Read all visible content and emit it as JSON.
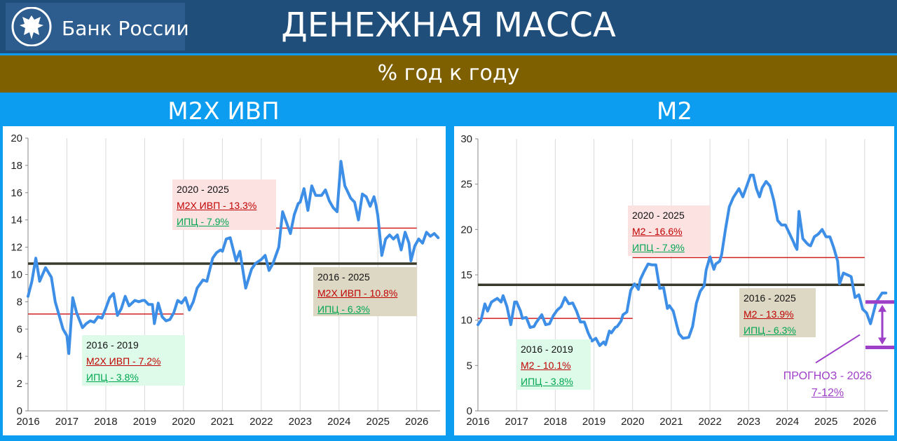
{
  "header": {
    "logo_text": "Банк России",
    "title": "ДЕНЕЖНАЯ МАССА",
    "subtitle": "% год к году"
  },
  "colors": {
    "series": "#3d8ee6",
    "accent_red": "#c00000",
    "accent_green": "#00a651",
    "forecast": "#9e3fc8",
    "mean_line": "#3a3a2a"
  },
  "icons": {
    "logo": "double-headed-eagle-icon"
  },
  "charts": [
    {
      "panel_title": "M2X ИВП",
      "chart_data": {
        "type": "line",
        "title": "M2X ИВП",
        "xlim": [
          2016,
          2026.6
        ],
        "ylim": [
          0,
          20
        ],
        "x_ticks": [
          "2016",
          "2017",
          "2018",
          "2019",
          "2020",
          "2021",
          "2022",
          "2023",
          "2024",
          "2025",
          "2026"
        ],
        "y_ticks": [
          "0",
          "2",
          "4",
          "6",
          "8",
          "10",
          "12",
          "14",
          "16",
          "18",
          "20"
        ],
        "grid": "vertical",
        "x": [
          2016.0,
          2016.1,
          2016.2,
          2016.3,
          2016.45,
          2016.6,
          2016.7,
          2016.8,
          2016.9,
          2017.0,
          2017.05,
          2017.15,
          2017.25,
          2017.4,
          2017.5,
          2017.6,
          2017.7,
          2017.8,
          2017.9,
          2018.0,
          2018.1,
          2018.2,
          2018.3,
          2018.4,
          2018.5,
          2018.6,
          2018.75,
          2018.85,
          2018.95,
          2019.0,
          2019.1,
          2019.2,
          2019.25,
          2019.35,
          2019.45,
          2019.55,
          2019.65,
          2019.75,
          2019.85,
          2019.95,
          2020.05,
          2020.15,
          2020.25,
          2020.35,
          2020.5,
          2020.6,
          2020.75,
          2020.85,
          2020.95,
          2021.0,
          2021.1,
          2021.2,
          2021.35,
          2021.45,
          2021.6,
          2021.75,
          2021.85,
          2021.95,
          2022.0,
          2022.1,
          2022.2,
          2022.3,
          2022.45,
          2022.55,
          2022.75,
          2022.85,
          2022.95,
          2023.0,
          2023.1,
          2023.2,
          2023.3,
          2023.4,
          2023.55,
          2023.65,
          2023.75,
          2023.85,
          2023.95,
          2024.05,
          2024.15,
          2024.2,
          2024.3,
          2024.4,
          2024.5,
          2024.6,
          2024.7,
          2024.8,
          2024.9,
          2024.95,
          2025.0,
          2025.1,
          2025.2,
          2025.3,
          2025.4,
          2025.5,
          2025.6,
          2025.7,
          2025.8,
          2025.85,
          2025.95,
          2026.05,
          2026.15,
          2026.25,
          2026.35,
          2026.45,
          2026.55
        ],
        "y": [
          8.4,
          9.5,
          11.2,
          9.5,
          10.5,
          9.8,
          8.0,
          7.0,
          6.0,
          5.5,
          4.2,
          8.3,
          7.2,
          6.1,
          6.4,
          6.6,
          6.5,
          6.9,
          6.8,
          7.5,
          8.3,
          8.6,
          7.0,
          7.5,
          8.4,
          7.7,
          8.1,
          8.0,
          8.1,
          8.1,
          7.8,
          7.8,
          6.4,
          7.9,
          6.9,
          6.6,
          6.7,
          7.2,
          8.1,
          7.9,
          8.3,
          7.4,
          8.0,
          9.0,
          9.6,
          9.5,
          11.2,
          11.6,
          11.8,
          11.7,
          12.6,
          12.7,
          11.0,
          11.7,
          9.0,
          10.4,
          10.8,
          11.0,
          11.1,
          11.4,
          10.3,
          10.8,
          12.0,
          14.6,
          13.0,
          14.4,
          15.2,
          15.3,
          16.3,
          14.7,
          16.5,
          15.8,
          15.8,
          16.2,
          15.4,
          14.9,
          14.6,
          18.3,
          16.5,
          16.2,
          15.6,
          15.3,
          14.0,
          15.9,
          15.7,
          15.0,
          15.7,
          15.1,
          14.3,
          11.4,
          12.6,
          12.9,
          12.6,
          12.9,
          11.8,
          13.1,
          12.3,
          11.0,
          12.1,
          12.6,
          12.3,
          13.1,
          12.8,
          13.0,
          12.7
        ],
        "hlines": [
          {
            "y": 10.8,
            "x0": 2016,
            "x1": 2026,
            "color": "#3a3a2a"
          },
          {
            "y": 13.4,
            "x0": 2020,
            "x1": 2026,
            "color": "#d02020"
          },
          {
            "y": 7.1,
            "x0": 2016,
            "x1": 2020,
            "color": "#d02020"
          }
        ],
        "annotations": [
          {
            "period": "2020 - 2025",
            "m_line": "M2X ИВП - 13.3%",
            "cpi_line": "ИПЦ - 7.9%",
            "style": "pink"
          },
          {
            "period": "2016 - 2025",
            "m_line": "M2X ИВП - 10.8%",
            "cpi_line": "ИПЦ - 6.3%",
            "style": "beige"
          },
          {
            "period": "2016 - 2019",
            "m_line": "M2X ИВП - 7.2%",
            "cpi_line": "ИПЦ - 3.8%",
            "style": "green"
          }
        ]
      }
    },
    {
      "panel_title": "M2",
      "chart_data": {
        "type": "line",
        "title": "M2",
        "xlim": [
          2016,
          2026.6
        ],
        "ylim": [
          0,
          30
        ],
        "x_ticks": [
          "2016",
          "2017",
          "2018",
          "2019",
          "2020",
          "2021",
          "2022",
          "2023",
          "2024",
          "2025",
          "2026"
        ],
        "y_ticks": [
          "0",
          "5",
          "10",
          "15",
          "20",
          "25",
          "30"
        ],
        "grid": "vertical",
        "x": [
          2016.0,
          2016.08,
          2016.18,
          2016.25,
          2016.35,
          2016.5,
          2016.6,
          2016.65,
          2016.75,
          2016.85,
          2016.95,
          2017.0,
          2017.1,
          2017.15,
          2017.25,
          2017.35,
          2017.45,
          2017.5,
          2017.55,
          2017.65,
          2017.75,
          2017.85,
          2017.95,
          2018.05,
          2018.15,
          2018.25,
          2018.35,
          2018.45,
          2018.55,
          2018.65,
          2018.75,
          2018.85,
          2018.95,
          2019.05,
          2019.15,
          2019.25,
          2019.3,
          2019.4,
          2019.45,
          2019.55,
          2019.6,
          2019.7,
          2019.75,
          2019.85,
          2019.95,
          2020.05,
          2020.15,
          2020.2,
          2020.3,
          2020.4,
          2020.5,
          2020.6,
          2020.7,
          2020.8,
          2020.9,
          2020.95,
          2021.05,
          2021.15,
          2021.2,
          2021.3,
          2021.45,
          2021.55,
          2021.65,
          2021.75,
          2021.85,
          2021.9,
          2022.0,
          2022.1,
          2022.15,
          2022.25,
          2022.3,
          2022.4,
          2022.5,
          2022.6,
          2022.75,
          2022.85,
          2022.95,
          2023.05,
          2023.12,
          2023.2,
          2023.28,
          2023.35,
          2023.45,
          2023.55,
          2023.65,
          2023.75,
          2023.85,
          2023.95,
          2024.05,
          2024.15,
          2024.2,
          2024.25,
          2024.3,
          2024.4,
          2024.5,
          2024.55,
          2024.6,
          2024.7,
          2024.8,
          2024.9,
          2025.0,
          2025.1,
          2025.2,
          2025.3,
          2025.35,
          2025.45,
          2025.55,
          2025.65,
          2025.75,
          2025.85,
          2025.95,
          2026.05,
          2026.15,
          2026.3,
          2026.45,
          2026.55
        ],
        "y": [
          9.5,
          10.0,
          11.8,
          11.0,
          12.0,
          12.4,
          12.0,
          12.7,
          11.5,
          9.5,
          12.0,
          12.0,
          11.0,
          10.2,
          10.3,
          9.2,
          9.3,
          9.7,
          10.0,
          10.6,
          9.5,
          9.6,
          10.5,
          11.1,
          11.5,
          12.5,
          11.8,
          11.9,
          11.0,
          9.8,
          9.8,
          8.6,
          7.7,
          8.0,
          7.2,
          7.6,
          7.3,
          8.8,
          8.6,
          9.2,
          9.3,
          9.9,
          10.6,
          10.9,
          13.3,
          14.0,
          13.4,
          14.5,
          15.4,
          16.2,
          16.1,
          16.1,
          13.5,
          13.6,
          11.3,
          11.6,
          11.0,
          9.3,
          8.5,
          8.0,
          8.1,
          9.3,
          11.9,
          13.2,
          13.8,
          15.5,
          17.0,
          15.6,
          16.2,
          16.5,
          17.2,
          20.0,
          22.5,
          23.5,
          24.5,
          23.6,
          24.8,
          26.0,
          26.0,
          24.5,
          23.6,
          24.6,
          25.3,
          24.8,
          23.2,
          21.0,
          20.5,
          20.5,
          19.6,
          18.7,
          18.2,
          17.8,
          22.0,
          19.0,
          18.5,
          18.3,
          18.2,
          19.2,
          19.5,
          20.0,
          19.2,
          19.2,
          18.0,
          16.5,
          14.0,
          15.2,
          15.0,
          14.8,
          12.5,
          12.8,
          11.2,
          10.8,
          9.6,
          12.0,
          13.0,
          13.0
        ],
        "hlines": [
          {
            "y": 13.9,
            "x0": 2016,
            "x1": 2026,
            "color": "#3a3a2a"
          },
          {
            "y": 16.9,
            "x0": 2020,
            "x1": 2026,
            "color": "#d02020"
          },
          {
            "y": 10.2,
            "x0": 2016,
            "x1": 2020,
            "color": "#d02020"
          }
        ],
        "annotations": [
          {
            "period": "2020 - 2025",
            "m_line": "M2 - 16.6%",
            "cpi_line": "ИПЦ - 7.9%",
            "style": "pink"
          },
          {
            "period": "2016 - 2025",
            "m_line": "M2 - 13.9%",
            "cpi_line": "ИПЦ - 6.3%",
            "style": "beige"
          },
          {
            "period": "2016 - 2019",
            "m_line": "M2 - 10.1%",
            "cpi_line": "ИПЦ - 3.8%",
            "style": "green"
          }
        ],
        "forecast": {
          "label": "ПРОГНОЗ - 2026",
          "range": "7-12%",
          "low": 7,
          "high": 12,
          "year": 2026.6
        }
      }
    }
  ]
}
